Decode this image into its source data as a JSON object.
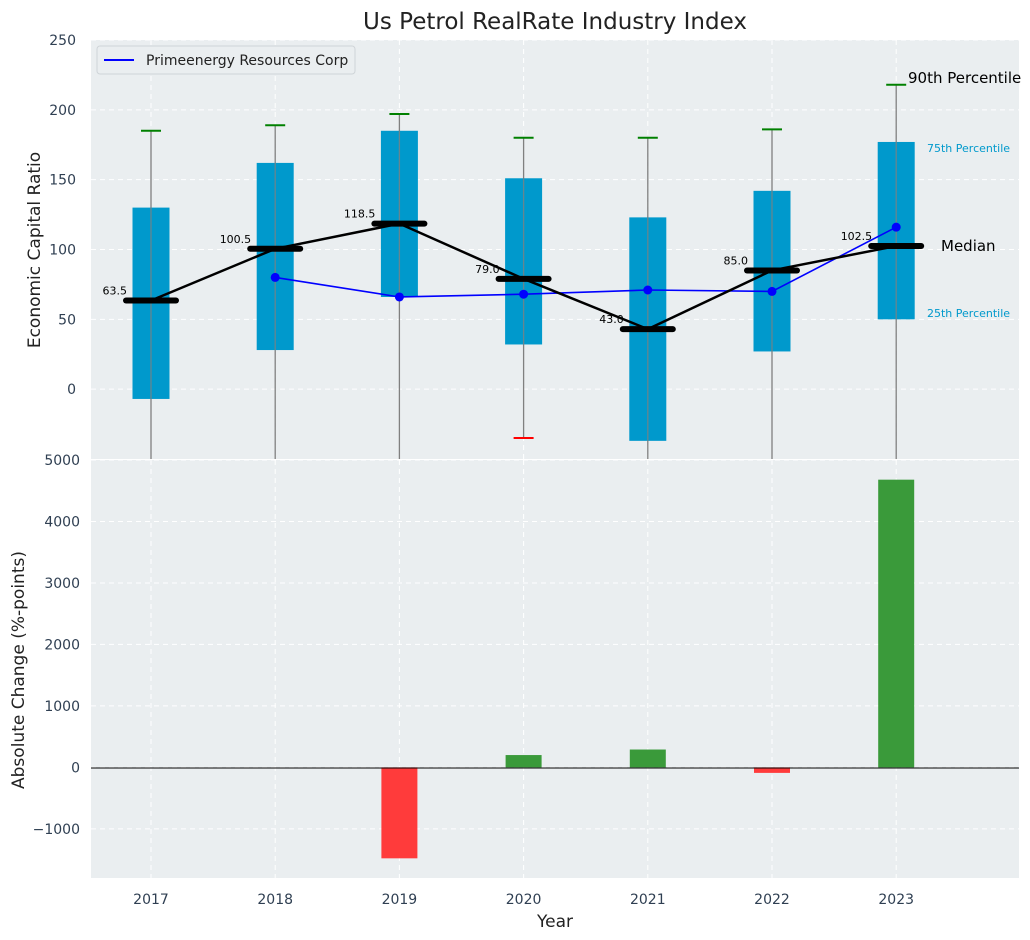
{
  "title": "Us Petrol RealRate Industry Index",
  "colors": {
    "panel_bg": "#eaeef0",
    "box": "#0099cc",
    "median": "#000000",
    "company": "#0000ff",
    "whisker_cap_top": "#008000",
    "whisker_cap_low": "#ff0000",
    "whisker_line": "#808080",
    "bar_positive": "#3a9a3a",
    "bar_negative": "#ff3b3b",
    "percentile_label": "#0099cc",
    "tick_text": "#2f3f52"
  },
  "chart_data": [
    {
      "type": "box",
      "title": "Us Petrol RealRate Industry Index",
      "ylabel": "Economic Capital Ratio",
      "xlabel": "",
      "ylim": [
        -50,
        250
      ],
      "yticks": [
        0,
        50,
        100,
        150,
        200,
        250
      ],
      "categories": [
        "2017",
        "2018",
        "2019",
        "2020",
        "2021",
        "2022",
        "2023"
      ],
      "boxes": [
        {
          "year": "2017",
          "p10": -50,
          "p25": -7,
          "median": 63.5,
          "p75": 130,
          "p90": 185
        },
        {
          "year": "2018",
          "p10": -50,
          "p25": 28,
          "median": 100.5,
          "p75": 162,
          "p90": 189
        },
        {
          "year": "2019",
          "p10": -50,
          "p25": 66,
          "median": 118.5,
          "p75": 185,
          "p90": 197
        },
        {
          "year": "2020",
          "p10": -35,
          "p25": 32,
          "median": 79.0,
          "p75": 151,
          "p90": 180
        },
        {
          "year": "2021",
          "p10": -50,
          "p25": -37,
          "median": 43.0,
          "p75": 123,
          "p90": 180
        },
        {
          "year": "2022",
          "p10": -50,
          "p25": 27,
          "median": 85.0,
          "p75": 142,
          "p90": 186
        },
        {
          "year": "2023",
          "p10": -50,
          "p25": 50,
          "median": 102.5,
          "p75": 177,
          "p90": 218
        }
      ],
      "median_labels": [
        "63.5",
        "100.5",
        "118.5",
        "79.0",
        "43.0",
        "85.0",
        "102.5"
      ],
      "series": [
        {
          "name": "Primeenergy Resources Corp",
          "values": [
            null,
            80,
            66,
            68,
            71,
            70,
            116
          ]
        }
      ],
      "legend": "top-left",
      "annotations": {
        "p90": "90th Percentile",
        "p75": "75th Percentile",
        "median": "Median",
        "p25": "25th Percentile"
      },
      "grid": true
    },
    {
      "type": "bar",
      "xlabel": "Year",
      "ylabel": "Absolute Change (%-points)",
      "ylim": [
        -1800,
        5000
      ],
      "yticks": [
        -1000,
        0,
        1000,
        2000,
        3000,
        4000,
        5000
      ],
      "ytick_labels": [
        "−1000",
        "0",
        "1000",
        "2000",
        "3000",
        "4000",
        "5000"
      ],
      "categories": [
        "2017",
        "2018",
        "2019",
        "2020",
        "2021",
        "2022",
        "2023"
      ],
      "values": [
        0,
        0,
        -1480,
        200,
        290,
        -90,
        4680
      ],
      "grid": true
    }
  ]
}
